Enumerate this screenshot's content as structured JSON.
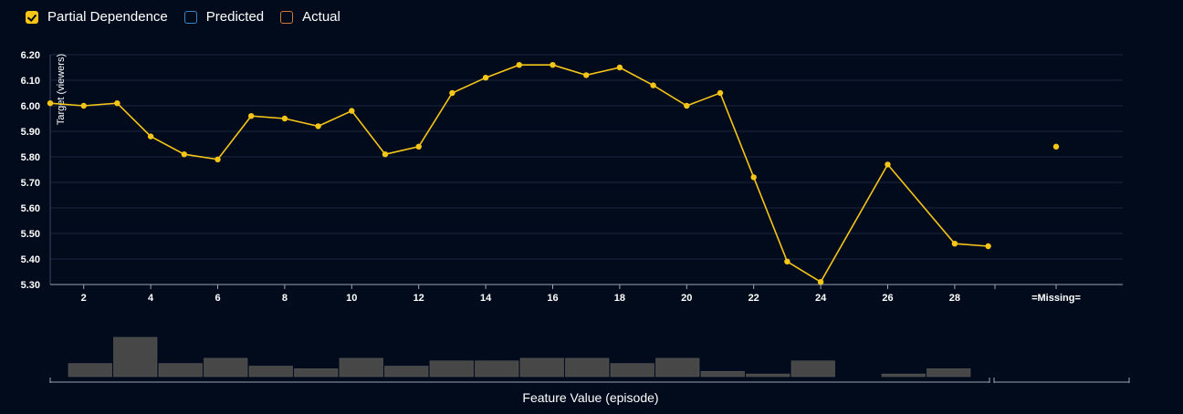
{
  "legend": {
    "items": [
      {
        "label": "Partial Dependence",
        "checked": true,
        "color": "#f5c518"
      },
      {
        "label": "Predicted",
        "checked": false,
        "color": "#3b82c4"
      },
      {
        "label": "Actual",
        "checked": false,
        "color": "#c97a3a"
      }
    ]
  },
  "chart_data": [
    {
      "type": "line",
      "ylabel": "Target (viewers)",
      "xlabel": "",
      "ylim": [
        5.3,
        6.2
      ],
      "yticks": [
        "5.30",
        "5.40",
        "5.50",
        "5.60",
        "5.70",
        "5.80",
        "5.90",
        "6.00",
        "6.10",
        "6.20"
      ],
      "xlim": [
        1,
        29
      ],
      "xticks": [
        "2",
        "4",
        "6",
        "8",
        "10",
        "12",
        "14",
        "16",
        "18",
        "20",
        "22",
        "24",
        "26",
        "28"
      ],
      "grid": "horizontal",
      "line_color": "#f5c518",
      "series": [
        {
          "points": [
            [
              1,
              6.01
            ],
            [
              2,
              6.0
            ],
            [
              3,
              6.01
            ],
            [
              4,
              5.88
            ],
            [
              5,
              5.81
            ],
            [
              6,
              5.79
            ],
            [
              7,
              5.96
            ],
            [
              8,
              5.95
            ],
            [
              9,
              5.92
            ],
            [
              10,
              5.98
            ],
            [
              11,
              5.81
            ],
            [
              12,
              5.84
            ],
            [
              13,
              6.05
            ],
            [
              14,
              6.11
            ],
            [
              15,
              6.16
            ],
            [
              16,
              6.16
            ],
            [
              17,
              6.12
            ],
            [
              18,
              6.15
            ],
            [
              19,
              6.08
            ],
            [
              20,
              6.0
            ],
            [
              21,
              6.05
            ],
            [
              22,
              5.72
            ],
            [
              23,
              5.39
            ],
            [
              24,
              5.31
            ],
            [
              26,
              5.77
            ],
            [
              28,
              5.46
            ],
            [
              29,
              5.45
            ]
          ]
        }
      ],
      "missing": {
        "label": "=Missing=",
        "value": 5.84
      }
    },
    {
      "type": "bar",
      "xlabel": "Feature Value (episode)",
      "bar_color": "#474747",
      "bins": [
        {
          "x": 1,
          "count": 5
        },
        {
          "x": 2,
          "count": 15
        },
        {
          "x": 3,
          "count": 5
        },
        {
          "x": 4,
          "count": 7
        },
        {
          "x": 5,
          "count": 4
        },
        {
          "x": 6,
          "count": 3
        },
        {
          "x": 7,
          "count": 7
        },
        {
          "x": 8,
          "count": 4
        },
        {
          "x": 9,
          "count": 6
        },
        {
          "x": 10,
          "count": 6
        },
        {
          "x": 11,
          "count": 7
        },
        {
          "x": 12,
          "count": 7
        },
        {
          "x": 13,
          "count": 5
        },
        {
          "x": 14,
          "count": 7
        },
        {
          "x": 15,
          "count": 2
        },
        {
          "x": 16,
          "count": 1
        },
        {
          "x": 17,
          "count": 6
        },
        {
          "x": 19,
          "count": 1
        },
        {
          "x": 20,
          "count": 3
        }
      ]
    }
  ]
}
